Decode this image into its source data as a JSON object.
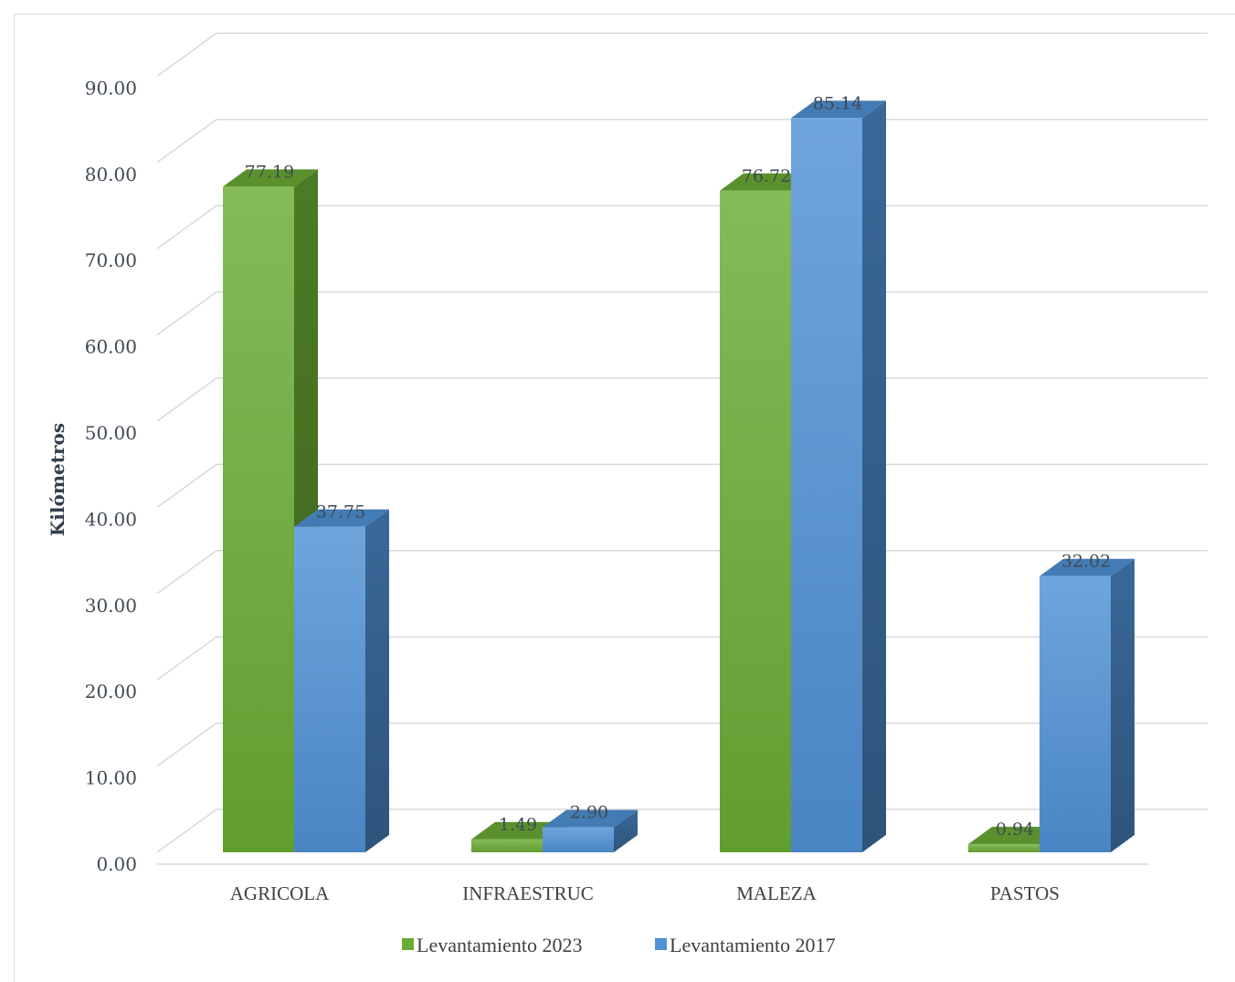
{
  "chart_data": {
    "type": "bar",
    "ylabel": "Kilómetros",
    "ylim": [
      0,
      90
    ],
    "ytick_step": 10,
    "ytick_labels": [
      "0.00",
      "10.00",
      "20.00",
      "30.00",
      "40.00",
      "50.00",
      "60.00",
      "70.00",
      "80.00",
      "90.00"
    ],
    "categories": [
      "AGRICOLA",
      "INFRAESTRUC",
      "MALEZA",
      "PASTOS"
    ],
    "series": [
      {
        "name": "Levantamiento 2023",
        "values": [
          77.19,
          1.49,
          76.72,
          0.94
        ],
        "labels": [
          "77.19",
          "1.49",
          "76.72",
          "0.94"
        ],
        "color": "#6aab34"
      },
      {
        "name": "Levantamiento 2017",
        "values": [
          37.75,
          2.9,
          85.14,
          32.02
        ],
        "labels": [
          "37.75",
          "2.90",
          "85.14",
          "32.02"
        ],
        "color": "#4f91d4"
      }
    ],
    "grid": true,
    "legend_position": "bottom",
    "style": "3d-clustered-column"
  }
}
